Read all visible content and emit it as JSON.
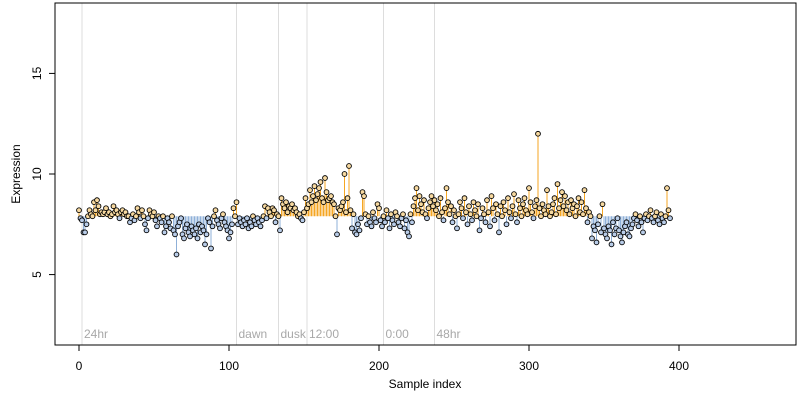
{
  "chart_data": {
    "type": "scatter",
    "xlabel": "Sample index",
    "ylabel": "Expression",
    "xlim": [
      -16,
      478
    ],
    "ylim": [
      1.5,
      18.5
    ],
    "x_ticks": [
      0,
      100,
      200,
      300,
      400
    ],
    "y_ticks": [
      5,
      10,
      15
    ],
    "grid": false,
    "baseline_value": 7.9,
    "colors": {
      "above_baseline_segment": "#f5a623",
      "below_baseline_segment": "#8fb0d8",
      "point_fill_above": "#f7d9a0",
      "point_fill_below": "#b8cce8",
      "point_stroke": "#000000",
      "marker_lines": "#dddddd",
      "marker_text": "#a8a8a8"
    },
    "markers": [
      {
        "label": "24hr",
        "x": 2
      },
      {
        "label": "dawn",
        "x": 105
      },
      {
        "label": "dusk",
        "x": 133
      },
      {
        "label": "12:00",
        "x": 152
      },
      {
        "label": "0:00",
        "x": 203
      },
      {
        "label": "48hr",
        "x": 237
      }
    ],
    "y": [
      8.2,
      7.8,
      7.7,
      7.1,
      7.1,
      7.5,
      7.9,
      8.2,
      8.0,
      7.9,
      8.6,
      8.2,
      8.7,
      8.4,
      8.0,
      8.1,
      8.0,
      8.1,
      8.3,
      8.0,
      8.1,
      7.9,
      8.0,
      8.4,
      8.1,
      8.2,
      8.0,
      7.8,
      8.1,
      8.2,
      8.0,
      8.1,
      7.9,
      7.9,
      7.6,
      7.8,
      8.0,
      7.7,
      7.9,
      8.3,
      8.1,
      7.8,
      8.2,
      7.9,
      7.5,
      7.2,
      7.8,
      8.2,
      8.0,
      7.9,
      8.1,
      7.7,
      7.4,
      7.9,
      7.8,
      7.6,
      7.9,
      7.1,
      7.4,
      7.8,
      7.6,
      7.3,
      7.9,
      7.2,
      7.0,
      6.0,
      7.4,
      7.6,
      7.8,
      7.0,
      6.8,
      7.3,
      7.5,
      7.1,
      6.9,
      7.4,
      7.2,
      7.0,
      7.3,
      6.8,
      7.5,
      7.1,
      7.4,
      7.2,
      6.5,
      7.0,
      7.8,
      7.6,
      6.3,
      7.4,
      7.9,
      8.2,
      7.7,
      7.5,
      7.3,
      7.8,
      8.0,
      7.6,
      7.4,
      7.2,
      6.8,
      7.1,
      7.5,
      8.3,
      7.9,
      8.6,
      7.5,
      7.8,
      7.6,
      7.4,
      7.7,
      7.5,
      7.8,
      7.3,
      7.6,
      7.4,
      7.9,
      7.7,
      7.5,
      7.8,
      7.6,
      7.4,
      7.7,
      7.9,
      8.4,
      7.8,
      8.3,
      8.1,
      7.9,
      8.3,
      8.2,
      7.6,
      8.0,
      7.9,
      7.2,
      8.8,
      8.5,
      8.3,
      8.6,
      8.1,
      8.4,
      8.3,
      8.5,
      8.2,
      8.3,
      8.1,
      7.9,
      8.0,
      7.8,
      7.7,
      8.1,
      8.8,
      8.3,
      8.5,
      9.2,
      8.6,
      8.9,
      9.4,
      8.7,
      9.0,
      9.3,
      9.6,
      8.8,
      8.6,
      9.8,
      9.1,
      8.7,
      8.8,
      8.9,
      8.6,
      8.5,
      7.9,
      7.0,
      8.3,
      8.2,
      8.4,
      8.6,
      10.0,
      8.1,
      8.8,
      10.4,
      8.2,
      7.3,
      8.0,
      7.1,
      7.0,
      7.5,
      7.2,
      7.8,
      9.1,
      8.9,
      8.0,
      7.5,
      7.9,
      7.6,
      7.4,
      8.1,
      7.8,
      7.6,
      8.5,
      8.3,
      7.7,
      7.4,
      7.9,
      7.6,
      8.2,
      7.8,
      7.3,
      8.0,
      7.7,
      7.5,
      8.1,
      7.9,
      7.6,
      7.4,
      7.8,
      8.0,
      7.3,
      7.7,
      7.1,
      6.9,
      8.0,
      7.6,
      8.4,
      8.8,
      9.3,
      8.2,
      8.9,
      8.5,
      8.1,
      8.7,
      8.0,
      7.8,
      8.3,
      8.6,
      8.9,
      8.4,
      8.7,
      8.2,
      8.5,
      7.9,
      8.8,
      8.1,
      7.7,
      8.3,
      9.3,
      8.6,
      8.0,
      8.4,
      7.6,
      8.2,
      7.9,
      7.3,
      8.0,
      8.6,
      8.3,
      7.8,
      8.8,
      8.1,
      7.5,
      8.4,
      8.0,
      7.7,
      8.6,
      8.2,
      7.9,
      8.5,
      7.2,
      7.8,
      8.3,
      8.0,
      7.6,
      8.7,
      8.1,
      7.4,
      8.9,
      8.3,
      7.7,
      8.5,
      8.0,
      7.1,
      8.4,
      7.9,
      8.6,
      8.2,
      7.5,
      8.8,
      8.1,
      7.8,
      8.4,
      9.0,
      8.0,
      7.6,
      8.7,
      8.3,
      7.9,
      8.5,
      8.8,
      8.2,
      8.0,
      9.3,
      8.6,
      8.1,
      7.8,
      8.4,
      8.7,
      12.0,
      8.3,
      7.9,
      8.5,
      8.2,
      8.0,
      9.2,
      8.4,
      7.9,
      8.1,
      8.5,
      8.8,
      8.0,
      9.5,
      8.3,
      8.7,
      9.1,
      8.4,
      8.9,
      8.2,
      8.6,
      8.0,
      8.7,
      8.3,
      8.5,
      7.9,
      8.4,
      8.8,
      8.1,
      8.6,
      8.0,
      9.2,
      8.3,
      7.6,
      8.1,
      7.9,
      6.8,
      7.4,
      7.2,
      6.6,
      7.5,
      7.9,
      7.1,
      8.5,
      7.3,
      7.0,
      6.8,
      7.4,
      7.2,
      6.5,
      7.6,
      7.0,
      7.3,
      7.8,
      7.2,
      6.9,
      6.6,
      7.1,
      7.4,
      7.6,
      7.0,
      6.9,
      7.3,
      7.5,
      7.8,
      8.0,
      7.7,
      7.4,
      7.9,
      7.6,
      7.1,
      7.8,
      8.0,
      7.7,
      7.9,
      8.2,
      7.8,
      7.6,
      7.9,
      8.1,
      7.7,
      7.5,
      8.0,
      7.8,
      7.6,
      7.9,
      9.3,
      8.2,
      7.8
    ]
  }
}
